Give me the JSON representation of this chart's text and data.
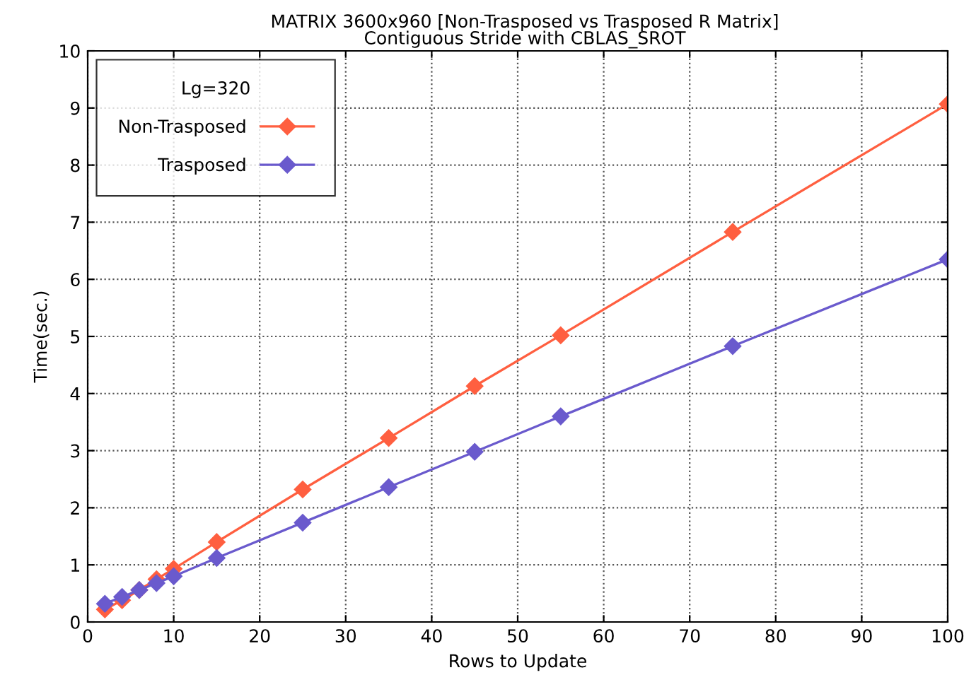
{
  "chart_data": {
    "type": "line",
    "title": "MATRIX 3600x960 [Non-Trasposed vs Trasposed R Matrix]",
    "subtitle": "Contiguous Stride with CBLAS_SROT",
    "xlabel": "Rows to Update",
    "ylabel": "Time(sec.)",
    "legend_title": "Lg=320",
    "x": [
      2,
      4,
      6,
      8,
      10,
      15,
      25,
      35,
      45,
      55,
      75,
      100
    ],
    "series": [
      {
        "name": "Non-Trasposed",
        "color": "#ff5f40",
        "values": [
          0.22,
          0.38,
          0.56,
          0.75,
          0.93,
          1.4,
          2.32,
          3.22,
          4.13,
          5.02,
          6.83,
          9.07
        ]
      },
      {
        "name": "Trasposed",
        "color": "#6a5acd",
        "values": [
          0.32,
          0.44,
          0.56,
          0.68,
          0.8,
          1.12,
          1.74,
          2.36,
          2.98,
          3.6,
          4.83,
          6.35
        ]
      }
    ],
    "xlim": [
      0,
      100
    ],
    "ylim": [
      0,
      10
    ],
    "xticks": [
      0,
      10,
      20,
      30,
      40,
      50,
      60,
      70,
      80,
      90,
      100
    ],
    "yticks": [
      0,
      1,
      2,
      3,
      4,
      5,
      6,
      7,
      8,
      9,
      10
    ],
    "grid": true,
    "legend": "top left",
    "marker": "diamond",
    "line_style": "solid"
  }
}
